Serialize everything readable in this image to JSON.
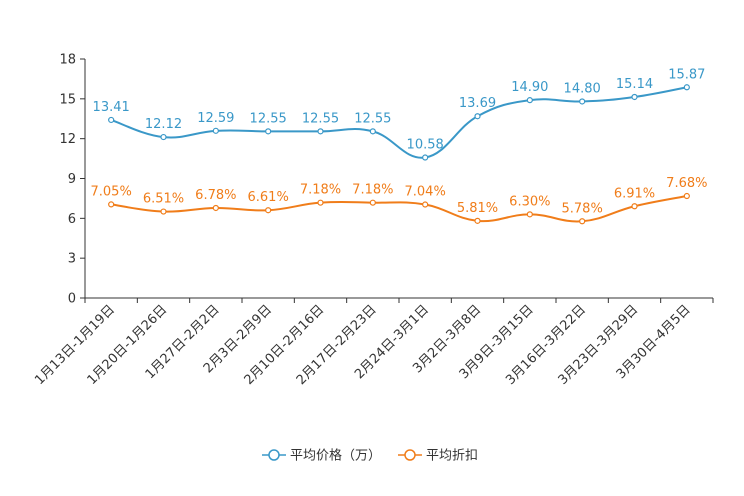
{
  "chart_data": {
    "type": "line",
    "title": "",
    "xlabel": "",
    "ylabel": "",
    "ylim": [
      0,
      18
    ],
    "yticks": [
      0,
      3,
      6,
      9,
      12,
      15,
      18
    ],
    "grid": false,
    "legend_position": "bottom-center",
    "categories": [
      "1月13日-1月19日",
      "1月20日-1月26日",
      "1月27日-2月2日",
      "2月3日-2月9日",
      "2月10日-2月16日",
      "2月17日-2月23日",
      "2月24日-3月1日",
      "3月2日-3月8日",
      "3月9日-3月15日",
      "3月16日-3月22日",
      "3月23日-3月29日",
      "3月30日-4月5日"
    ],
    "series": [
      {
        "name": "平均价格（万）",
        "color": "#3a98c8",
        "values": [
          13.41,
          12.12,
          12.59,
          12.55,
          12.55,
          12.55,
          10.58,
          13.69,
          14.9,
          14.8,
          15.14,
          15.87
        ],
        "labels": [
          "13.41",
          "12.12",
          "12.59",
          "12.55",
          "12.55",
          "12.55",
          "10.58",
          "13.69",
          "14.90",
          "14.80",
          "15.14",
          "15.87"
        ]
      },
      {
        "name": "平均折扣",
        "color": "#f07d1a",
        "values": [
          7.05,
          6.51,
          6.78,
          6.61,
          7.18,
          7.18,
          7.04,
          5.81,
          6.3,
          5.78,
          6.91,
          7.68
        ],
        "labels": [
          "7.05%",
          "6.51%",
          "6.78%",
          "6.61%",
          "7.18%",
          "7.18%",
          "7.04%",
          "5.81%",
          "6.30%",
          "5.78%",
          "6.91%",
          "7.68%"
        ]
      }
    ]
  }
}
